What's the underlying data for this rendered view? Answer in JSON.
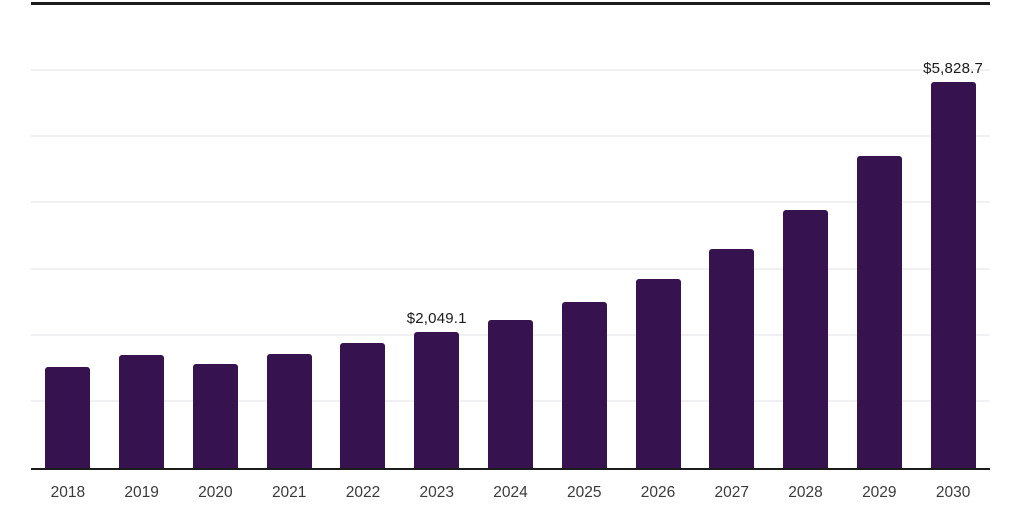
{
  "chart_data": {
    "type": "bar",
    "title": "",
    "xlabel": "",
    "ylabel": "",
    "categories": [
      "2018",
      "2019",
      "2020",
      "2021",
      "2022",
      "2023",
      "2024",
      "2025",
      "2026",
      "2027",
      "2028",
      "2029",
      "2030"
    ],
    "values": [
      1530,
      1713,
      1574,
      1723,
      1887,
      2049.1,
      2244,
      2507,
      2855,
      3317,
      3906,
      4717,
      5828.7
    ],
    "data_labels": [
      {
        "category": "2023",
        "text": "$2,049.1"
      },
      {
        "category": "2030",
        "text": "$5,828.7"
      }
    ],
    "ylim": [
      0,
      7000
    ],
    "gridline_interval": 1000,
    "grid": true,
    "legend": false,
    "bar_color": "#36124f",
    "axis_color": "#1c1c1c",
    "gridline_color": "#f1f1f3",
    "value_label_color": "#1a1a1a",
    "tick_label_color": "#3a3a3a",
    "background_color": "#ffffff"
  }
}
